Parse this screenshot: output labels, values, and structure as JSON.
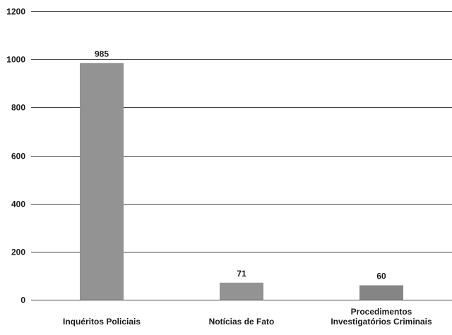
{
  "chart_data": {
    "type": "bar",
    "title": "",
    "xlabel": "",
    "ylabel": "",
    "ylim": [
      0,
      1200
    ],
    "yticks": [
      0,
      200,
      400,
      600,
      800,
      1000,
      1200
    ],
    "grid": true,
    "categories": [
      [
        "Inquéritos Policiais"
      ],
      [
        "Notícias de Fato"
      ],
      [
        "Procedimentos",
        "Investigatórios Criminais"
      ]
    ],
    "values": [
      985,
      71,
      60
    ],
    "data_labels": [
      "985",
      "71",
      "60"
    ],
    "colors": {
      "bar": "#939393",
      "bar_last": "#858585",
      "gridline": "#444444",
      "text": "#1a1a1a"
    }
  }
}
